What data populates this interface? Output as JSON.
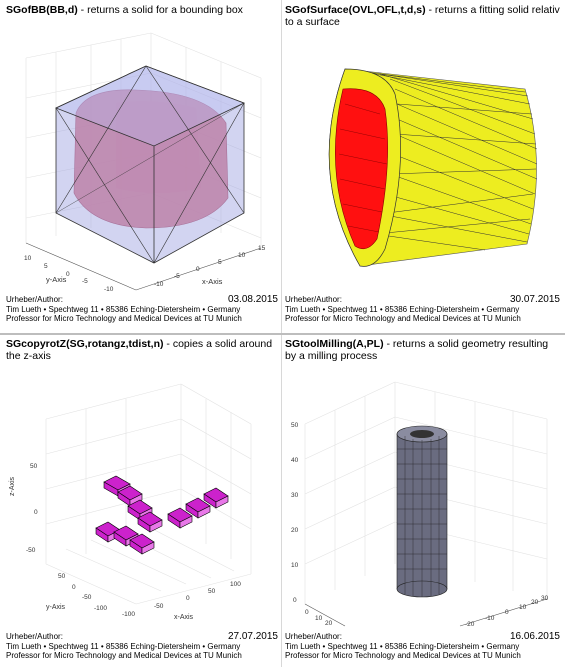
{
  "panels": [
    {
      "fn": "SGofBB(BB,d)",
      "desc": " - returns a solid for a bounding box",
      "author_label": "Urheber/Author:",
      "date": "03.08.2015",
      "address": "Tim Lueth • Spechtweg 11 • 85386 Eching-Dietersheim • Germany",
      "profession": "Professor for Micro Technology and Medical Devices at TU Munich",
      "axes": {
        "xlabel": "x-Axis",
        "ylabel": "y-Axis",
        "xticks": [
          "-10",
          "-5",
          "0",
          "5",
          "10",
          "15"
        ],
        "yticks": [
          "-10",
          "-5",
          "0",
          "5",
          "10"
        ]
      }
    },
    {
      "fn": "SGofSurface(OVL,OFL,t,d,s)",
      "desc": " - returns a fitting solid relativ to a surface",
      "author_label": "Urheber/Author:",
      "date": "30.07.2015",
      "address": "Tim Lueth • Spechtweg 11 • 85386 Eching-Dietersheim • Germany",
      "profession": "Professor for Micro Technology and Medical Devices at TU Munich"
    },
    {
      "fn": "SGcopyrotZ(SG,rotangz,tdist,n)",
      "desc": " - copies a solid around the z-axis",
      "author_label": "Urheber/Author:",
      "date": "27.07.2015",
      "address": "Tim Lueth • Spechtweg 11 • 85386 Eching-Dietersheim • Germany",
      "profession": "Professor for Micro Technology and Medical Devices at TU Munich",
      "axes": {
        "xlabel": "x-Axis",
        "ylabel": "y-Axis",
        "zlabel": "z-Axis",
        "xticks": [
          "-100",
          "-50",
          "0",
          "50",
          "100"
        ],
        "yticks": [
          "-100",
          "-50",
          "0",
          "50"
        ],
        "zticks": [
          "-50",
          "0",
          "50"
        ]
      }
    },
    {
      "fn": "SGtoolMilling(A,PL)",
      "desc": " - returns a solid geometry resulting by a milling process",
      "author_label": "Urheber/Author:",
      "date": "16.06.2015",
      "address": "Tim Lueth • Spechtweg 11 • 85386 Eching-Dietersheim • Germany",
      "profession": "Professor for Micro Technology and Medical Devices at TU Munich",
      "axes": {
        "xticks": [
          "0",
          "10",
          "20",
          "30",
          "40"
        ],
        "yticks": [
          "-20",
          "-10",
          "0",
          "10",
          "20",
          "30"
        ],
        "zticks": [
          "0",
          "10",
          "20",
          "30",
          "40",
          "50"
        ]
      }
    }
  ],
  "colors": {
    "box": "#9b9fe0",
    "solid_red": "#e06070",
    "yellow": "#eded20",
    "red": "#ff1010",
    "magenta": "#cc22cc",
    "tool": "#6a6c80"
  }
}
